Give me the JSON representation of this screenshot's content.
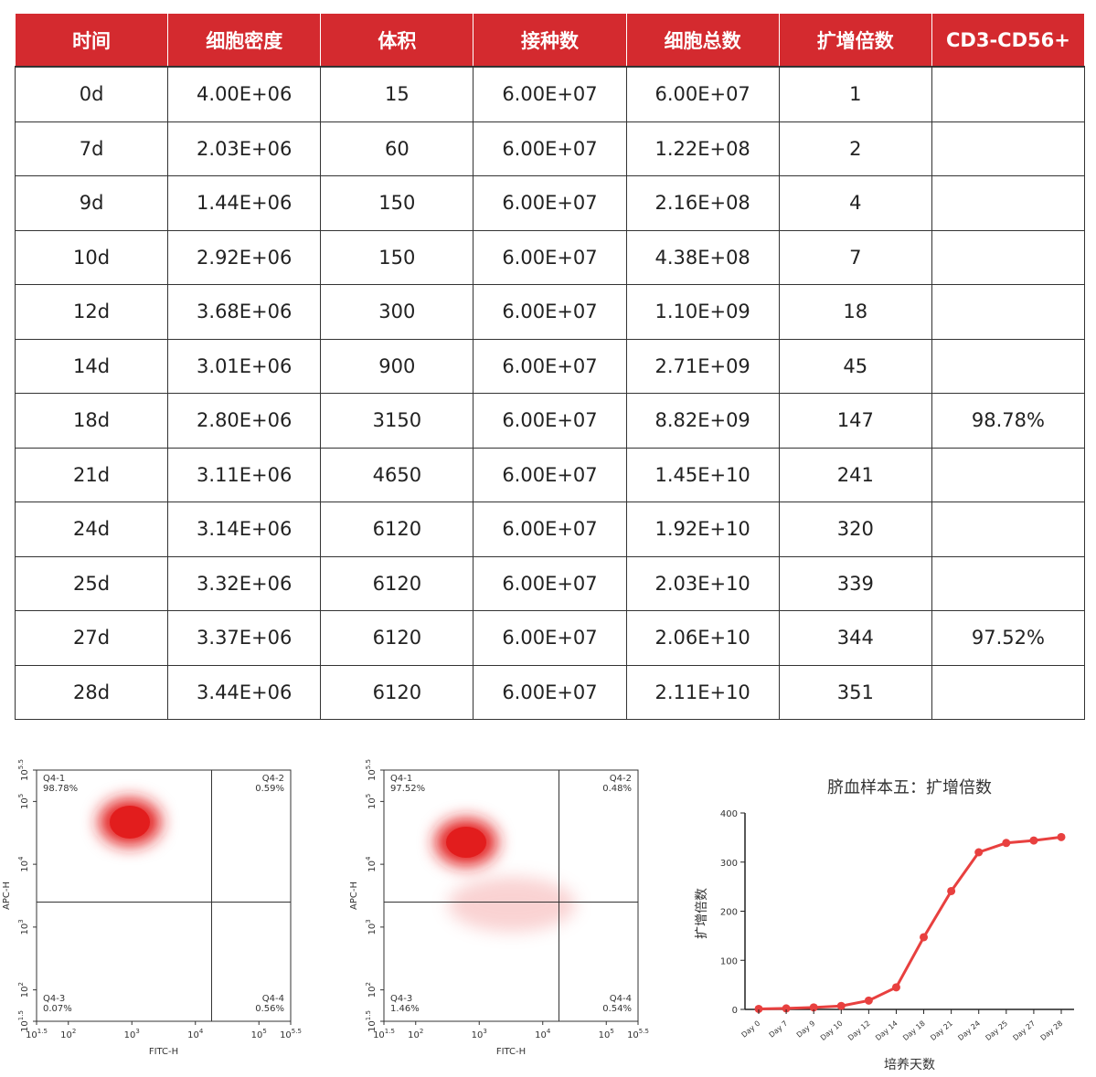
{
  "table": {
    "header": [
      "时间",
      "细胞密度",
      "体积",
      "接种数",
      "细胞总数",
      "扩增倍数",
      "CD3-CD56+"
    ],
    "rows": [
      [
        "0d",
        "4.00E+06",
        "15",
        "6.00E+07",
        "6.00E+07",
        "1",
        null
      ],
      [
        "7d",
        "2.03E+06",
        "60",
        "6.00E+07",
        "1.22E+08",
        "2",
        null
      ],
      [
        "9d",
        "1.44E+06",
        "150",
        "6.00E+07",
        "2.16E+08",
        "4",
        null
      ],
      [
        "10d",
        "2.92E+06",
        "150",
        "6.00E+07",
        "4.38E+08",
        "7",
        null
      ],
      [
        "12d",
        "3.68E+06",
        "300",
        "6.00E+07",
        "1.10E+09",
        "18",
        null
      ],
      [
        "14d",
        "3.01E+06",
        "900",
        "6.00E+07",
        "2.71E+09",
        "45",
        null
      ],
      [
        "18d",
        "2.80E+06",
        "3150",
        "6.00E+07",
        "8.82E+09",
        "147",
        "98.78%"
      ],
      [
        "21d",
        "3.11E+06",
        "4650",
        "6.00E+07",
        "1.45E+10",
        "241",
        null
      ],
      [
        "24d",
        "3.14E+06",
        "6120",
        "6.00E+07",
        "1.92E+10",
        "320",
        null
      ],
      [
        "25d",
        "3.32E+06",
        "6120",
        "6.00E+07",
        "2.03E+10",
        "339",
        null
      ],
      [
        "27d",
        "3.37E+06",
        "6120",
        "6.00E+07",
        "2.06E+10",
        "344",
        "97.52%"
      ],
      [
        "28d",
        "3.44E+06",
        "6120",
        "6.00E+07",
        "2.11E+10",
        "351",
        null
      ]
    ]
  },
  "chart_data": [
    {
      "type": "flow",
      "xlabel": "FITC-H",
      "ylabel": "APC-H",
      "xscale": "log",
      "yscale": "log",
      "xlim": [
        31.62,
        316228
      ],
      "ylim": [
        31.62,
        316228
      ],
      "xticks": [
        {
          "value": 31.62,
          "label": "10^1.5"
        },
        {
          "value": 100,
          "label": "10^2"
        },
        {
          "value": 1000,
          "label": "10^3"
        },
        {
          "value": 10000,
          "label": "10^4"
        },
        {
          "value": 100000,
          "label": "10^5"
        },
        {
          "value": 316228,
          "label": "10^5.5"
        }
      ],
      "yticks": [
        {
          "value": 31.62,
          "label": "10^1.5"
        },
        {
          "value": 100,
          "label": "10^2"
        },
        {
          "value": 1000,
          "label": "10^3"
        },
        {
          "value": 10000,
          "label": "10^4"
        },
        {
          "value": 100000,
          "label": "10^5"
        },
        {
          "value": 316228,
          "label": "10^5.5"
        }
      ],
      "gate_x": 18000,
      "gate_y": 2500,
      "quadrants": [
        {
          "name": "Q4-1",
          "label": "98.78%"
        },
        {
          "name": "Q4-2",
          "label": "0.59%"
        },
        {
          "name": "Q4-3",
          "label": "0.07%"
        },
        {
          "name": "Q4-4",
          "label": "0.56%"
        }
      ]
    },
    {
      "type": "flow",
      "xlabel": "FITC-H",
      "ylabel": "APC-H",
      "xscale": "log",
      "yscale": "log",
      "xlim": [
        31.62,
        316228
      ],
      "ylim": [
        31.62,
        316228
      ],
      "xticks": [
        {
          "value": 31.62,
          "label": "10^1.5"
        },
        {
          "value": 100,
          "label": "10^2"
        },
        {
          "value": 1000,
          "label": "10^3"
        },
        {
          "value": 10000,
          "label": "10^4"
        },
        {
          "value": 100000,
          "label": "10^5"
        },
        {
          "value": 316228,
          "label": "10^5.5"
        }
      ],
      "yticks": [
        {
          "value": 31.62,
          "label": "10^1.5"
        },
        {
          "value": 100,
          "label": "10^2"
        },
        {
          "value": 1000,
          "label": "10^3"
        },
        {
          "value": 10000,
          "label": "10^4"
        },
        {
          "value": 100000,
          "label": "10^5"
        },
        {
          "value": 316228,
          "label": "10^5.5"
        }
      ],
      "gate_x": 18000,
      "gate_y": 2500,
      "quadrants": [
        {
          "name": "Q4-1",
          "label": "97.52%"
        },
        {
          "name": "Q4-2",
          "label": "0.48%"
        },
        {
          "name": "Q4-3",
          "label": "1.46%"
        },
        {
          "name": "Q4-4",
          "label": "0.54%"
        }
      ]
    },
    {
      "type": "line",
      "title": "脐血样本五：扩增倍数",
      "xlabel": "培养天数",
      "ylabel": "扩增倍数",
      "color": "#e8403f",
      "categories": [
        "Day 0",
        "Day 7",
        "Day 9",
        "Day 10",
        "Day 12",
        "Day 14",
        "Day 18",
        "Day 21",
        "Day 24",
        "Day 25",
        "Day 27",
        "Day 28"
      ],
      "values": [
        1,
        2,
        4,
        7,
        18,
        45,
        147,
        241,
        320,
        339,
        344,
        351
      ],
      "ylim": [
        0,
        400
      ],
      "yticks": [
        0,
        100,
        200,
        300,
        400
      ]
    }
  ]
}
